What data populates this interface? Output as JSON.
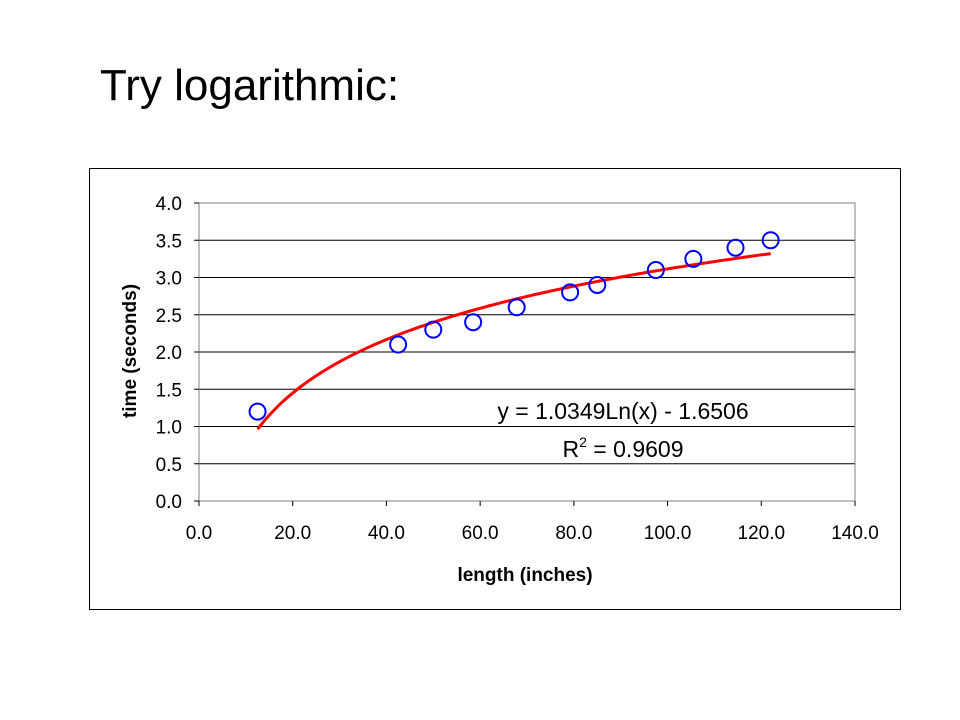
{
  "slide": {
    "title": "Try logarithmic:"
  },
  "chart_data": {
    "type": "scatter",
    "xlabel": "length (inches)",
    "ylabel": "time (seconds)",
    "xlim": [
      0,
      140
    ],
    "ylim": [
      0,
      4
    ],
    "x_ticks": [
      "0.0",
      "20.0",
      "40.0",
      "60.0",
      "80.0",
      "100.0",
      "120.0",
      "140.0"
    ],
    "y_ticks": [
      "0.0",
      "0.5",
      "1.0",
      "1.5",
      "2.0",
      "2.5",
      "3.0",
      "3.5",
      "4.0"
    ],
    "grid": "horizontal",
    "series": [
      {
        "points": [
          {
            "x": 12.5,
            "y": 1.2
          },
          {
            "x": 42.5,
            "y": 2.1
          },
          {
            "x": 50.0,
            "y": 2.3
          },
          {
            "x": 58.5,
            "y": 2.4
          },
          {
            "x": 67.8,
            "y": 2.6
          },
          {
            "x": 79.2,
            "y": 2.8
          },
          {
            "x": 85.0,
            "y": 2.9
          },
          {
            "x": 97.5,
            "y": 3.1
          },
          {
            "x": 105.5,
            "y": 3.25
          },
          {
            "x": 114.5,
            "y": 3.4
          },
          {
            "x": 122.0,
            "y": 3.5
          }
        ],
        "marker": "open-circle",
        "color": "#0000ff"
      }
    ],
    "trendline": {
      "type": "logarithmic",
      "a": 1.0349,
      "b": -1.6506,
      "x_range": [
        12.5,
        122.0
      ],
      "color": "#ff0000",
      "equation_label": "y = 1.0349Ln(x) - 1.6506",
      "r2_prefix": "R",
      "r2_sup": "2",
      "r2_value": " = 0.9609"
    }
  }
}
